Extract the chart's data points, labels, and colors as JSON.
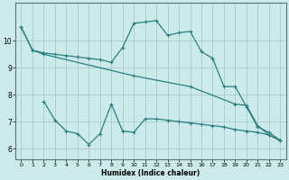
{
  "xlabel": "Humidex (Indice chaleur)",
  "bg_color": "#cceaea",
  "grid_color": "#aacccc",
  "line_color": "#2a7f7f",
  "x_ticks": [
    0,
    1,
    2,
    3,
    4,
    5,
    6,
    7,
    8,
    9,
    10,
    11,
    12,
    13,
    14,
    15,
    16,
    17,
    18,
    19,
    20,
    21,
    22,
    23
  ],
  "y_ticks": [
    6,
    7,
    8,
    9,
    10
  ],
  "ylim": [
    5.6,
    11.4
  ],
  "xlim": [
    -0.5,
    23.5
  ],
  "line1_x": [
    0,
    1,
    2,
    3,
    4,
    5,
    6,
    7,
    8,
    9,
    10,
    11,
    12,
    13,
    14,
    15,
    16,
    17,
    18,
    19,
    20,
    21,
    22,
    23
  ],
  "line1_y": [
    10.5,
    9.65,
    9.55,
    9.5,
    9.45,
    9.4,
    9.35,
    9.3,
    9.2,
    9.75,
    10.65,
    10.7,
    10.75,
    10.2,
    10.3,
    10.35,
    9.6,
    9.35,
    8.3,
    8.3,
    7.55,
    6.8,
    6.6,
    6.3
  ],
  "line2_x": [
    0,
    1,
    2,
    10,
    15,
    19,
    20,
    21,
    22,
    23
  ],
  "line2_y": [
    10.5,
    9.65,
    9.5,
    8.7,
    8.3,
    7.65,
    7.6,
    6.85,
    6.5,
    6.3
  ],
  "line3_x": [
    2,
    3,
    4,
    5,
    6,
    7,
    8,
    9,
    10,
    11,
    12,
    13,
    14,
    15,
    16,
    17,
    18,
    19,
    20,
    21,
    22,
    23
  ],
  "line3_y": [
    7.75,
    7.05,
    6.65,
    6.55,
    6.15,
    6.55,
    7.65,
    6.65,
    6.6,
    7.1,
    7.1,
    7.05,
    7.0,
    6.95,
    6.9,
    6.85,
    6.8,
    6.7,
    6.65,
    6.6,
    6.5,
    6.3
  ]
}
